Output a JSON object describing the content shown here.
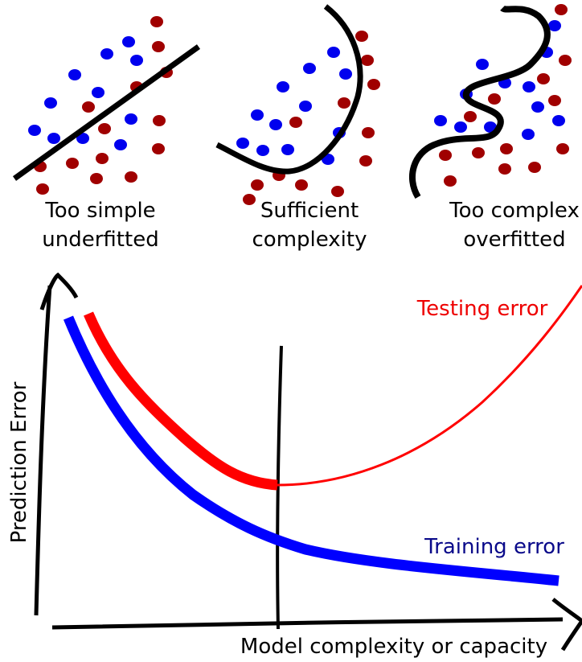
{
  "panels": [
    {
      "lines": [
        "Too simple",
        "underfitted"
      ]
    },
    {
      "lines": [
        "Sufficient",
        "complexity"
      ]
    },
    {
      "lines": [
        "Too complex",
        "overfitted"
      ]
    }
  ],
  "axes": {
    "y_label": "Prediction Error",
    "x_label": "Model complexity or capacity"
  },
  "curves": {
    "testing": "Testing error",
    "training": "Training error"
  }
}
